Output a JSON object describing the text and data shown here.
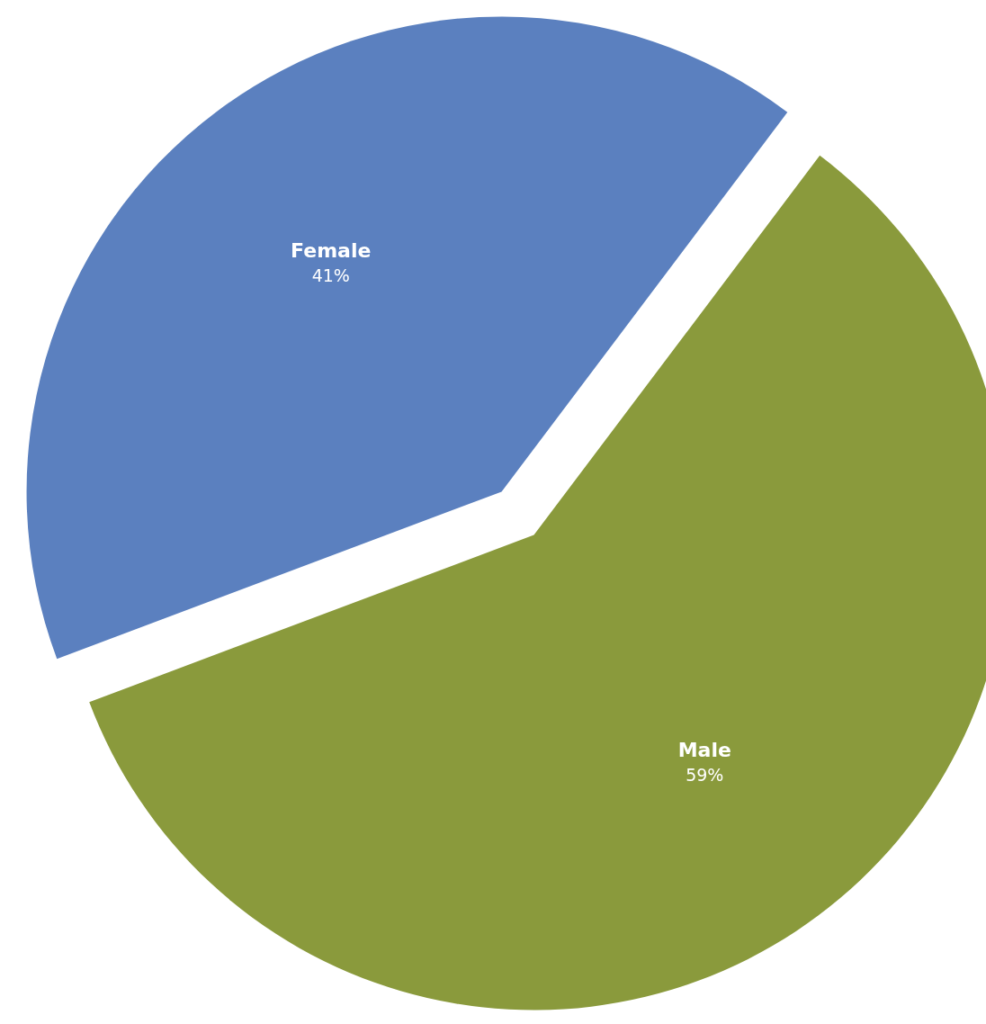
{
  "chart_data": {
    "type": "pie",
    "categories": [
      "Female",
      "Male"
    ],
    "values": [
      41,
      59
    ],
    "colors": [
      "#5b80bf",
      "#8a9a3c"
    ],
    "value_labels": [
      "41%",
      "59%"
    ]
  }
}
